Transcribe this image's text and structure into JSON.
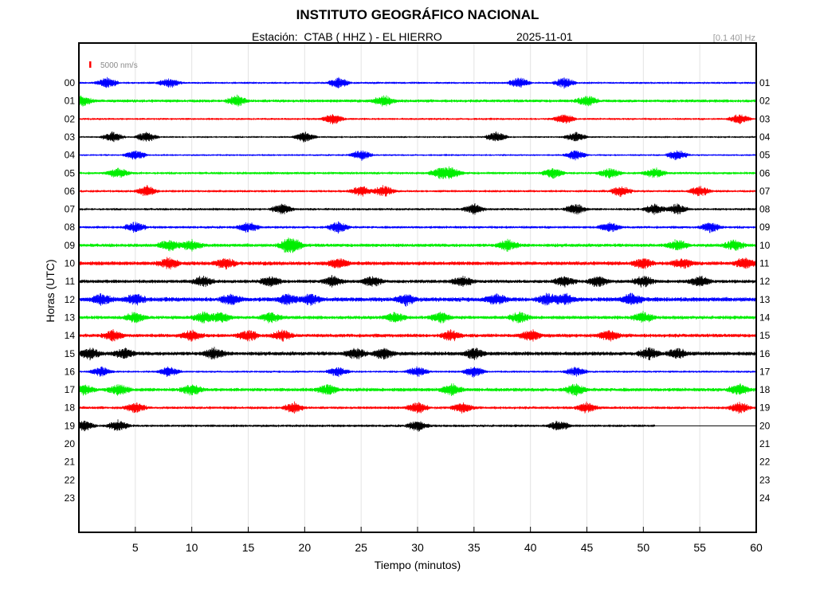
{
  "header": {
    "institution": "INSTITUTO GEOGRÁFICO NACIONAL",
    "station_line": "Estación:  CTAB ( HHZ ) - EL HIERRO",
    "date": "2025-11-01",
    "filter": "[0.1 40] Hz"
  },
  "chart_data": {
    "type": "line",
    "title": "INSTITUTO GEOGRÁFICO NACIONAL",
    "xlabel": "Tiempo (minutos)",
    "ylabel": "Horas (UTC)",
    "xlim": [
      0,
      60
    ],
    "x_ticks": [
      5,
      10,
      15,
      20,
      25,
      30,
      35,
      40,
      45,
      50,
      55,
      60
    ],
    "scale_bar_label": "5000 nm/s",
    "scale_bar_color": "#ff0000",
    "grid": true,
    "left_labels": [
      "00",
      "01",
      "02",
      "03",
      "04",
      "05",
      "06",
      "07",
      "08",
      "09",
      "10",
      "11",
      "12",
      "13",
      "14",
      "15",
      "16",
      "17",
      "18",
      "19",
      "20",
      "21",
      "22",
      "23"
    ],
    "right_labels": [
      "01",
      "02",
      "03",
      "04",
      "05",
      "06",
      "07",
      "08",
      "09",
      "10",
      "11",
      "12",
      "13",
      "14",
      "15",
      "16",
      "17",
      "18",
      "19",
      "20",
      "21",
      "22",
      "23",
      "24"
    ],
    "series_colors": [
      "#0000ff",
      "#00ee00",
      "#ff0000",
      "#000000"
    ],
    "traces": [
      {
        "hour": "00",
        "color": "#0000ff",
        "amplitude": 0.25,
        "end_minute": 60,
        "bursts": [
          2.5,
          8,
          23,
          39,
          43
        ]
      },
      {
        "hour": "01",
        "color": "#00ee00",
        "amplitude": 0.35,
        "end_minute": 60,
        "bursts": [
          0.3,
          14,
          27,
          45
        ]
      },
      {
        "hour": "02",
        "color": "#ff0000",
        "amplitude": 0.25,
        "end_minute": 60,
        "bursts": [
          22.5,
          43,
          58.5
        ]
      },
      {
        "hour": "03",
        "color": "#000000",
        "amplitude": 0.22,
        "end_minute": 60,
        "bursts": [
          3,
          6,
          20,
          37,
          44
        ]
      },
      {
        "hour": "04",
        "color": "#0000ff",
        "amplitude": 0.22,
        "end_minute": 60,
        "bursts": [
          5,
          25,
          44,
          53
        ]
      },
      {
        "hour": "05",
        "color": "#00ee00",
        "amplitude": 0.3,
        "end_minute": 60,
        "bursts": [
          3.5,
          32,
          33,
          42,
          47,
          51
        ]
      },
      {
        "hour": "06",
        "color": "#ff0000",
        "amplitude": 0.28,
        "end_minute": 60,
        "bursts": [
          6,
          25,
          27,
          48,
          55
        ]
      },
      {
        "hour": "07",
        "color": "#000000",
        "amplitude": 0.28,
        "end_minute": 60,
        "bursts": [
          18,
          35,
          44,
          51,
          53
        ]
      },
      {
        "hour": "08",
        "color": "#0000ff",
        "amplitude": 0.3,
        "end_minute": 60,
        "bursts": [
          5,
          15,
          23,
          47,
          56
        ]
      },
      {
        "hour": "09",
        "color": "#00ee00",
        "amplitude": 0.4,
        "end_minute": 60,
        "bursts": [
          8,
          10,
          18.5,
          19,
          38,
          53,
          58
        ]
      },
      {
        "hour": "10",
        "color": "#ff0000",
        "amplitude": 0.45,
        "end_minute": 60,
        "bursts": [
          8,
          13,
          23,
          50,
          53.5,
          59
        ]
      },
      {
        "hour": "11",
        "color": "#000000",
        "amplitude": 0.4,
        "end_minute": 60,
        "bursts": [
          11,
          17,
          22.5,
          26,
          34,
          43,
          46,
          50,
          55
        ]
      },
      {
        "hour": "12",
        "color": "#0000ff",
        "amplitude": 0.5,
        "end_minute": 60,
        "bursts": [
          2,
          5,
          13.5,
          18.5,
          20.5,
          29,
          37,
          41.5,
          43,
          49
        ]
      },
      {
        "hour": "13",
        "color": "#00ee00",
        "amplitude": 0.4,
        "end_minute": 60,
        "bursts": [
          5,
          11,
          12.5,
          17,
          28,
          32,
          39,
          50
        ]
      },
      {
        "hour": "14",
        "color": "#ff0000",
        "amplitude": 0.42,
        "end_minute": 60,
        "bursts": [
          3,
          10,
          15,
          18,
          33,
          40,
          47
        ]
      },
      {
        "hour": "15",
        "color": "#000000",
        "amplitude": 0.45,
        "end_minute": 60,
        "bursts": [
          1,
          4,
          12,
          24.5,
          27,
          35,
          50.5,
          53
        ]
      },
      {
        "hour": "16",
        "color": "#0000ff",
        "amplitude": 0.25,
        "end_minute": 60,
        "bursts": [
          2,
          8,
          23,
          30,
          35,
          44
        ]
      },
      {
        "hour": "17",
        "color": "#00ee00",
        "amplitude": 0.42,
        "end_minute": 60,
        "bursts": [
          0.5,
          3.5,
          10,
          22,
          33,
          44,
          58.5
        ]
      },
      {
        "hour": "18",
        "color": "#ff0000",
        "amplitude": 0.32,
        "end_minute": 60,
        "bursts": [
          5,
          19,
          30,
          34,
          45,
          58.5
        ]
      },
      {
        "hour": "19",
        "color": "#000000",
        "amplitude": 0.3,
        "end_minute": 51,
        "bursts": [
          0.5,
          3.5,
          30,
          42.5
        ]
      }
    ]
  }
}
